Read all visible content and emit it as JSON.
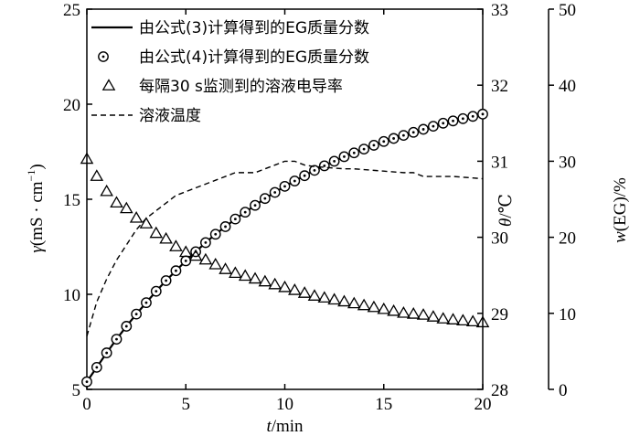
{
  "chart_data": {
    "type": "line",
    "x": [
      0,
      0.5,
      1,
      1.5,
      2,
      2.5,
      3,
      3.5,
      4,
      4.5,
      5,
      5.5,
      6,
      6.5,
      7,
      7.5,
      8,
      8.5,
      9,
      9.5,
      10,
      10.5,
      11,
      11.5,
      12,
      12.5,
      13,
      13.5,
      14,
      14.5,
      15,
      15.5,
      16,
      16.5,
      17,
      17.5,
      18,
      18.5,
      19,
      19.5,
      20
    ],
    "xlabel_var": "t",
    "xlabel_unit": "/min",
    "xlim": [
      0,
      20
    ],
    "x_ticks": [
      0,
      5,
      10,
      15,
      20
    ],
    "axes": {
      "left": {
        "label_var": "γ",
        "label_unit": "(mS · cm",
        "label_sup": "−1",
        "label_close": ")",
        "lim": [
          5,
          25
        ],
        "ticks": [
          5,
          10,
          15,
          20,
          25
        ]
      },
      "mid": {
        "label_var": "θ",
        "label_unit": "/℃",
        "lim": [
          28,
          33
        ],
        "ticks": [
          28,
          29,
          30,
          31,
          32,
          33
        ]
      },
      "right": {
        "label_var": "w",
        "label_unit": "(EG)/%",
        "lim": [
          0,
          50
        ],
        "ticks": [
          0,
          10,
          20,
          30,
          40,
          50
        ]
      }
    },
    "legend_position": "top-left",
    "series": [
      {
        "name": "由公式(3)计算得到的EG质量分数",
        "axis": "right",
        "style": "solid-line",
        "values": [
          1.0,
          2.9,
          4.8,
          6.6,
          8.3,
          9.9,
          11.4,
          12.9,
          14.3,
          15.6,
          16.9,
          18.1,
          19.3,
          20.4,
          21.4,
          22.4,
          23.3,
          24.2,
          25.1,
          25.9,
          26.7,
          27.4,
          28.1,
          28.8,
          29.4,
          30.0,
          30.6,
          31.1,
          31.6,
          32.1,
          32.6,
          33.0,
          33.4,
          33.8,
          34.2,
          34.6,
          35.0,
          35.3,
          35.6,
          35.9,
          36.2
        ]
      },
      {
        "name": "由公式(4)计算得到的EG质量分数",
        "axis": "right",
        "style": "circle-dot-marker",
        "values": [
          1.0,
          2.9,
          4.8,
          6.6,
          8.3,
          9.9,
          11.4,
          12.9,
          14.3,
          15.6,
          16.9,
          18.1,
          19.3,
          20.4,
          21.4,
          22.4,
          23.3,
          24.2,
          25.1,
          25.9,
          26.7,
          27.4,
          28.1,
          28.8,
          29.4,
          30.0,
          30.6,
          31.1,
          31.6,
          32.1,
          32.6,
          33.0,
          33.4,
          33.8,
          34.2,
          34.6,
          35.0,
          35.3,
          35.6,
          35.9,
          36.2
        ]
      },
      {
        "name": "每隔30 s监测到的溶液电导率",
        "axis": "left",
        "style": "triangle-marker",
        "values": [
          17.1,
          16.2,
          15.4,
          14.8,
          14.5,
          14.0,
          13.7,
          13.2,
          12.9,
          12.5,
          12.2,
          12.0,
          11.8,
          11.55,
          11.3,
          11.1,
          10.95,
          10.8,
          10.65,
          10.5,
          10.35,
          10.2,
          10.05,
          9.9,
          9.8,
          9.7,
          9.6,
          9.5,
          9.4,
          9.3,
          9.2,
          9.1,
          9.0,
          8.95,
          8.9,
          8.8,
          8.7,
          8.65,
          8.6,
          8.55,
          8.5
        ]
      },
      {
        "name": "溶液温度",
        "axis": "mid",
        "style": "dashed-line",
        "values": [
          28.7,
          29.15,
          29.45,
          29.7,
          29.9,
          30.1,
          30.25,
          30.35,
          30.45,
          30.55,
          30.6,
          30.65,
          30.7,
          30.75,
          30.8,
          30.85,
          30.85,
          30.85,
          30.9,
          30.95,
          31.0,
          31.0,
          30.95,
          30.93,
          30.92,
          30.91,
          30.9,
          30.9,
          30.89,
          30.88,
          30.87,
          30.86,
          30.85,
          30.85,
          30.8,
          30.8,
          30.8,
          30.8,
          30.79,
          30.78,
          30.77
        ]
      }
    ]
  }
}
